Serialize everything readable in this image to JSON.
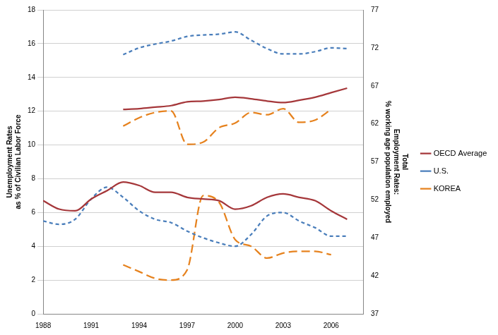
{
  "chart_data": {
    "type": "line",
    "ylabel": [
      "Unemployment Rates",
      "as % of Civilian Labor Force"
    ],
    "y2label": [
      "Total",
      "Employment Rates:",
      "% working age population employed"
    ],
    "x": [
      1988,
      1989,
      1990,
      1991,
      1992,
      1993,
      1994,
      1995,
      1996,
      1997,
      1998,
      1999,
      2000,
      2001,
      2002,
      2003,
      2004,
      2005,
      2006,
      2007
    ],
    "xlim": [
      1988,
      2008
    ],
    "xticks": [
      1988,
      1991,
      1994,
      1997,
      2000,
      2003,
      2006
    ],
    "ylim": [
      0,
      18
    ],
    "yticks": [
      0,
      2,
      4,
      6,
      8,
      10,
      12,
      14,
      16,
      18
    ],
    "y2lim": [
      37,
      77
    ],
    "y2ticks": [
      37,
      42,
      47,
      52,
      57,
      62,
      67,
      72,
      77
    ],
    "grid": true,
    "legend": "right",
    "marker": "none",
    "series": [
      {
        "name": "OECD Average",
        "color": "#a5373a",
        "line_style": "solid",
        "values": [
          6.7,
          6.2,
          6.1,
          6.8,
          7.3,
          7.8,
          7.6,
          7.2,
          7.2,
          6.9,
          6.8,
          6.7,
          6.2,
          6.4,
          6.9,
          7.1,
          6.9,
          6.7,
          6.1,
          5.6
        ]
      },
      {
        "name": "U.S.",
        "color": "#4a7ebb",
        "line_style": "dashed",
        "values": [
          5.5,
          5.3,
          5.6,
          6.8,
          7.5,
          6.9,
          6.1,
          5.6,
          5.4,
          4.9,
          4.5,
          4.2,
          4.0,
          4.7,
          5.8,
          6.0,
          5.5,
          5.1,
          4.6,
          4.6
        ]
      },
      {
        "name": "KOREA",
        "color": "#e6821e",
        "line_style": "long-dashed",
        "values": [
          null,
          null,
          null,
          null,
          null,
          2.9,
          2.5,
          2.1,
          2.0,
          2.6,
          7.0,
          6.6,
          4.4,
          4.0,
          3.3,
          3.6,
          3.7,
          3.7,
          3.5,
          null
        ]
      },
      {
        "name": "OECD Average",
        "color": "#a5373a",
        "line_style": "solid",
        "axis": "y2",
        "values": [
          null,
          null,
          null,
          null,
          null,
          63.9,
          64.0,
          64.2,
          64.4,
          64.9,
          65.0,
          65.2,
          65.5,
          65.3,
          65.0,
          64.8,
          65.1,
          65.5,
          66.1,
          66.7
        ]
      },
      {
        "name": "U.S.",
        "color": "#4a7ebb",
        "line_style": "dashed",
        "axis": "y2",
        "values": [
          null,
          null,
          null,
          null,
          null,
          71.1,
          72.0,
          72.5,
          72.9,
          73.5,
          73.7,
          73.8,
          74.1,
          73.0,
          71.9,
          71.2,
          71.2,
          71.5,
          72.0,
          71.9
        ]
      },
      {
        "name": "KOREA",
        "color": "#e6821e",
        "line_style": "long-dashed",
        "axis": "y2",
        "values": [
          null,
          null,
          null,
          null,
          null,
          61.7,
          62.8,
          63.5,
          63.7,
          59.3,
          59.6,
          61.5,
          62.1,
          63.5,
          63.2,
          64.0,
          62.2,
          62.5,
          63.9,
          null
        ]
      }
    ]
  }
}
